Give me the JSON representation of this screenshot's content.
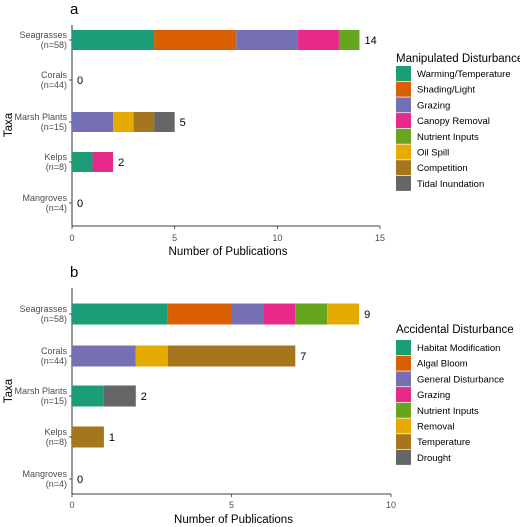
{
  "chart_data": [
    {
      "type": "bar",
      "orientation": "horizontal",
      "stacked": true,
      "panel_label": "a",
      "categories": [
        {
          "name": "Seagrasses",
          "n": "(n=58)"
        },
        {
          "name": "Corals",
          "n": "(n=44)"
        },
        {
          "name": "Marsh Plants",
          "n": "(n=15)"
        },
        {
          "name": "Kelps",
          "n": "(n=8)"
        },
        {
          "name": "Mangroves",
          "n": "(n=4)"
        }
      ],
      "series": [
        {
          "name": "Warming/Temperature",
          "color": "#1b9e77",
          "values": [
            4,
            0,
            0,
            1,
            0
          ]
        },
        {
          "name": "Shading/Light",
          "color": "#d95f02",
          "values": [
            4,
            0,
            0,
            0,
            0
          ]
        },
        {
          "name": "Grazing",
          "color": "#7570b3",
          "values": [
            3,
            0,
            2,
            0,
            0
          ]
        },
        {
          "name": "Canopy Removal",
          "color": "#e7298a",
          "values": [
            2,
            0,
            0,
            1,
            0
          ]
        },
        {
          "name": "Nutrient Inputs",
          "color": "#66a61e",
          "values": [
            1,
            0,
            0,
            0,
            0
          ]
        },
        {
          "name": "Oil Spill",
          "color": "#e6ab02",
          "values": [
            0,
            0,
            1,
            0,
            0
          ]
        },
        {
          "name": "Competition",
          "color": "#a6761d",
          "values": [
            0,
            0,
            1,
            0,
            0
          ]
        },
        {
          "name": "Tidal Inundation",
          "color": "#666666",
          "values": [
            0,
            0,
            1,
            0,
            0
          ]
        }
      ],
      "totals": [
        "14",
        "0",
        "5",
        "2",
        "0"
      ],
      "xlabel": "Number of Publications",
      "ylabel": "Taxa",
      "xlim": [
        0,
        15
      ],
      "xticks": [
        0,
        5,
        10,
        15
      ],
      "grid": false,
      "legend_title": "Manipulated Disturbance",
      "legend_position": "right"
    },
    {
      "type": "bar",
      "orientation": "horizontal",
      "stacked": true,
      "panel_label": "b",
      "categories": [
        {
          "name": "Seagrasses",
          "n": "(n=58)"
        },
        {
          "name": "Corals",
          "n": "(n=44)"
        },
        {
          "name": "Marsh Plants",
          "n": "(n=15)"
        },
        {
          "name": "Kelps",
          "n": "(n=8)"
        },
        {
          "name": "Mangroves",
          "n": "(n=4)"
        }
      ],
      "series": [
        {
          "name": "Habitat Modification",
          "color": "#1b9e77",
          "values": [
            3,
            0,
            1,
            0,
            0
          ]
        },
        {
          "name": "Algal Bloom",
          "color": "#d95f02",
          "values": [
            2,
            0,
            0,
            0,
            0
          ]
        },
        {
          "name": "General Disturbance",
          "color": "#7570b3",
          "values": [
            1,
            2,
            0,
            0,
            0
          ]
        },
        {
          "name": "Grazing",
          "color": "#e7298a",
          "values": [
            1,
            0,
            0,
            0,
            0
          ]
        },
        {
          "name": "Nutrient Inputs",
          "color": "#66a61e",
          "values": [
            1,
            0,
            0,
            0,
            0
          ]
        },
        {
          "name": "Removal",
          "color": "#e6ab02",
          "values": [
            1,
            1,
            0,
            0,
            0
          ]
        },
        {
          "name": "Temperature",
          "color": "#a6761d",
          "values": [
            0,
            4,
            0,
            1,
            0
          ]
        },
        {
          "name": "Drought",
          "color": "#666666",
          "values": [
            0,
            0,
            1,
            0,
            0
          ]
        }
      ],
      "totals": [
        "9",
        "7",
        "2",
        "1",
        "0"
      ],
      "xlabel": "Number of Publications",
      "ylabel": "Taxa",
      "xlim": [
        0,
        10
      ],
      "xticks": [
        0,
        5,
        10
      ],
      "grid": false,
      "legend_title": "Accidental Disturbance",
      "legend_position": "right"
    }
  ]
}
